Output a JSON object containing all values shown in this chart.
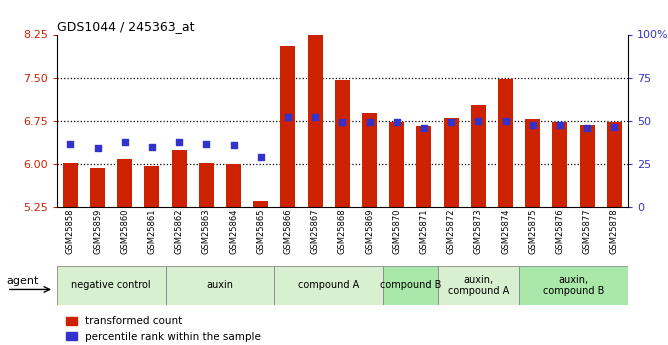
{
  "title": "GDS1044 / 245363_at",
  "samples": [
    "GSM25858",
    "GSM25859",
    "GSM25860",
    "GSM25861",
    "GSM25862",
    "GSM25863",
    "GSM25864",
    "GSM25865",
    "GSM25866",
    "GSM25867",
    "GSM25868",
    "GSM25869",
    "GSM25870",
    "GSM25871",
    "GSM25872",
    "GSM25873",
    "GSM25874",
    "GSM25875",
    "GSM25876",
    "GSM25877",
    "GSM25878"
  ],
  "bar_values": [
    6.02,
    5.92,
    6.08,
    5.96,
    6.25,
    6.02,
    6.0,
    5.35,
    8.05,
    8.6,
    7.45,
    6.88,
    6.72,
    6.65,
    6.8,
    7.02,
    7.48,
    6.78,
    6.72,
    6.68,
    6.73
  ],
  "dot_values": [
    6.35,
    6.28,
    6.38,
    6.3,
    6.38,
    6.35,
    6.33,
    6.12,
    6.82,
    6.82,
    6.72,
    6.72,
    6.72,
    6.62,
    6.72,
    6.75,
    6.75,
    6.68,
    6.68,
    6.62,
    6.65
  ],
  "ymin": 5.25,
  "ymax": 8.25,
  "yticks_left": [
    5.25,
    6.0,
    6.75,
    7.5,
    8.25
  ],
  "yticks_right": [
    0,
    25,
    50,
    75,
    100
  ],
  "bar_color": "#cc2200",
  "dot_color": "#3333cc",
  "groups": [
    {
      "label": "negative control",
      "start": 0,
      "end": 3,
      "color": "#d8f0d0"
    },
    {
      "label": "auxin",
      "start": 4,
      "end": 7,
      "color": "#d8f0d0"
    },
    {
      "label": "compound A",
      "start": 8,
      "end": 11,
      "color": "#d8f0d0"
    },
    {
      "label": "compound B",
      "start": 12,
      "end": 13,
      "color": "#aae8aa"
    },
    {
      "label": "auxin,\ncompound A",
      "start": 14,
      "end": 16,
      "color": "#d8f0d0"
    },
    {
      "label": "auxin,\ncompound B",
      "start": 17,
      "end": 20,
      "color": "#aae8aa"
    }
  ],
  "legend_labels": [
    "transformed count",
    "percentile rank within the sample"
  ],
  "agent_label": "agent"
}
